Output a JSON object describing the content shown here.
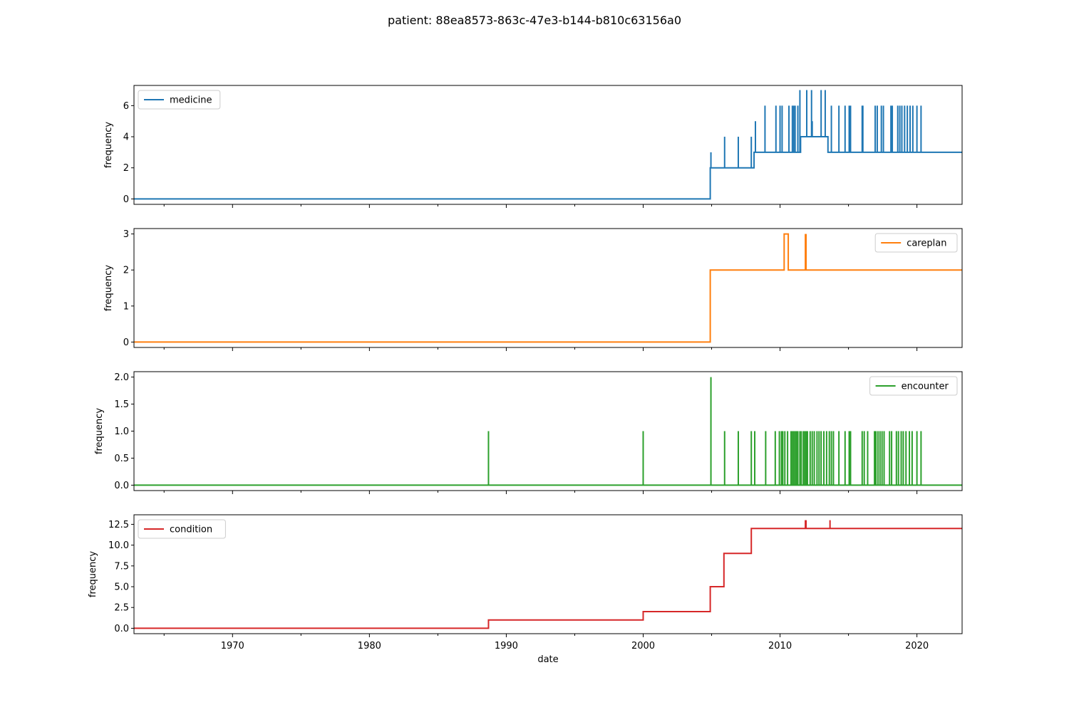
{
  "title": "patient: 88ea8573-863c-47e3-b144-b810c63156a0",
  "xlabel": "date",
  "chart_data": {
    "type": "line",
    "title": "patient: 88ea8573-863c-47e3-b144-b810c63156a0",
    "xlabel": "date",
    "xlim": [
      1962.8,
      2023.3
    ],
    "xticks": [
      1970,
      1980,
      1990,
      2000,
      2010,
      2020
    ],
    "xtick_labels": [
      "1970",
      "1980",
      "1990",
      "2000",
      "2010",
      "2020"
    ],
    "grid": false,
    "panels": [
      {
        "ylabel": "frequency",
        "ylim": [
          -0.35,
          7.3
        ],
        "yticks": [
          0,
          2,
          4,
          6
        ],
        "ytick_labels": [
          "0",
          "2",
          "4",
          "6"
        ],
        "legend_location": "upper left",
        "series": [
          {
            "name": "medicine",
            "color": "#1f77b4",
            "baseline": [
              [
                1962.8,
                0
              ],
              [
                2004.9,
                0
              ],
              [
                2004.9,
                2
              ],
              [
                2008.1,
                2
              ],
              [
                2008.1,
                3
              ],
              [
                2011.5,
                3
              ],
              [
                2011.5,
                4
              ],
              [
                2013.5,
                4
              ],
              [
                2013.5,
                3
              ],
              [
                2023.3,
                3
              ]
            ],
            "spikes": [
              [
                2004.95,
                3
              ],
              [
                2005.95,
                4
              ],
              [
                2006.95,
                4
              ],
              [
                2007.9,
                4
              ],
              [
                2008.2,
                5
              ],
              [
                2008.9,
                6
              ],
              [
                2009.7,
                6
              ],
              [
                2010.0,
                6
              ],
              [
                2010.15,
                6
              ],
              [
                2010.65,
                6
              ],
              [
                2010.9,
                6
              ],
              [
                2011.0,
                6
              ],
              [
                2011.1,
                6
              ],
              [
                2011.3,
                6
              ],
              [
                2011.45,
                7
              ],
              [
                2011.95,
                7
              ],
              [
                2012.3,
                7
              ],
              [
                2012.35,
                5
              ],
              [
                2013.0,
                7
              ],
              [
                2013.3,
                7
              ],
              [
                2013.75,
                6
              ],
              [
                2014.3,
                6
              ],
              [
                2014.75,
                6
              ],
              [
                2015.05,
                6
              ],
              [
                2015.15,
                6
              ],
              [
                2016.0,
                6
              ],
              [
                2016.05,
                6
              ],
              [
                2016.95,
                6
              ],
              [
                2017.1,
                6
              ],
              [
                2017.4,
                6
              ],
              [
                2017.55,
                6
              ],
              [
                2018.1,
                6
              ],
              [
                2018.2,
                6
              ],
              [
                2018.6,
                6
              ],
              [
                2018.75,
                6
              ],
              [
                2018.9,
                6
              ],
              [
                2019.1,
                6
              ],
              [
                2019.3,
                6
              ],
              [
                2019.5,
                6
              ],
              [
                2019.7,
                6
              ],
              [
                2020.0,
                6
              ],
              [
                2020.3,
                6
              ]
            ]
          }
        ]
      },
      {
        "ylabel": "frequency",
        "ylim": [
          -0.15,
          3.15
        ],
        "yticks": [
          0,
          1,
          2,
          3
        ],
        "ytick_labels": [
          "0",
          "1",
          "2",
          "3"
        ],
        "legend_location": "upper right",
        "series": [
          {
            "name": "careplan",
            "color": "#ff7f0e",
            "baseline": [
              [
                1962.8,
                0
              ],
              [
                2004.9,
                0
              ],
              [
                2004.9,
                2
              ],
              [
                2010.3,
                2
              ],
              [
                2010.3,
                3
              ],
              [
                2010.6,
                3
              ],
              [
                2010.6,
                2
              ],
              [
                2023.3,
                2
              ]
            ],
            "spikes": [
              [
                2011.85,
                3
              ],
              [
                2011.9,
                3
              ]
            ]
          }
        ]
      },
      {
        "ylabel": "frequency",
        "ylim": [
          -0.1,
          2.1
        ],
        "yticks": [
          0.0,
          0.5,
          1.0,
          1.5,
          2.0
        ],
        "ytick_labels": [
          "0.0",
          "0.5",
          "1.0",
          "1.5",
          "2.0"
        ],
        "legend_location": "upper right",
        "series": [
          {
            "name": "encounter",
            "color": "#2ca02c",
            "baseline": [
              [
                1962.8,
                0
              ],
              [
                2023.3,
                0
              ]
            ],
            "spikes": [
              [
                1988.7,
                1
              ],
              [
                2000.0,
                1
              ],
              [
                2004.95,
                2
              ],
              [
                2005.95,
                1
              ],
              [
                2006.95,
                1
              ],
              [
                2007.9,
                1
              ],
              [
                2008.15,
                1
              ],
              [
                2008.95,
                1
              ],
              [
                2009.65,
                1
              ],
              [
                2009.95,
                1
              ],
              [
                2010.1,
                1
              ],
              [
                2010.2,
                1
              ],
              [
                2010.35,
                1
              ],
              [
                2010.55,
                1
              ],
              [
                2010.8,
                1
              ],
              [
                2010.9,
                1
              ],
              [
                2011.0,
                1
              ],
              [
                2011.1,
                1
              ],
              [
                2011.2,
                1
              ],
              [
                2011.3,
                1
              ],
              [
                2011.45,
                1
              ],
              [
                2011.55,
                1
              ],
              [
                2011.7,
                1
              ],
              [
                2011.8,
                1
              ],
              [
                2011.9,
                1
              ],
              [
                2012.0,
                1
              ],
              [
                2012.2,
                1
              ],
              [
                2012.35,
                1
              ],
              [
                2012.5,
                1
              ],
              [
                2012.7,
                1
              ],
              [
                2012.85,
                1
              ],
              [
                2013.0,
                1
              ],
              [
                2013.2,
                1
              ],
              [
                2013.4,
                1
              ],
              [
                2013.6,
                1
              ],
              [
                2013.75,
                1
              ],
              [
                2013.9,
                1
              ],
              [
                2014.3,
                1
              ],
              [
                2014.75,
                1
              ],
              [
                2015.05,
                1
              ],
              [
                2015.15,
                1
              ],
              [
                2016.0,
                1
              ],
              [
                2016.15,
                1
              ],
              [
                2016.4,
                1
              ],
              [
                2016.9,
                1
              ],
              [
                2017.0,
                1
              ],
              [
                2017.15,
                1
              ],
              [
                2017.3,
                1
              ],
              [
                2017.45,
                1
              ],
              [
                2017.6,
                1
              ],
              [
                2018.0,
                1
              ],
              [
                2018.15,
                1
              ],
              [
                2018.5,
                1
              ],
              [
                2018.65,
                1
              ],
              [
                2018.85,
                1
              ],
              [
                2019.0,
                1
              ],
              [
                2019.2,
                1
              ],
              [
                2019.45,
                1
              ],
              [
                2019.65,
                1
              ],
              [
                2020.0,
                1
              ],
              [
                2020.3,
                1
              ]
            ]
          }
        ]
      },
      {
        "ylabel": "frequency",
        "ylim": [
          -0.65,
          13.65
        ],
        "yticks": [
          0.0,
          2.5,
          5.0,
          7.5,
          10.0,
          12.5
        ],
        "ytick_labels": [
          "0.0",
          "2.5",
          "5.0",
          "7.5",
          "10.0",
          "12.5"
        ],
        "legend_location": "upper left",
        "series": [
          {
            "name": "condition",
            "color": "#d62728",
            "baseline": [
              [
                1962.8,
                0
              ],
              [
                1988.7,
                0
              ],
              [
                1988.7,
                1
              ],
              [
                2000.0,
                1
              ],
              [
                2000.0,
                2
              ],
              [
                2004.9,
                2
              ],
              [
                2004.9,
                5
              ],
              [
                2005.9,
                5
              ],
              [
                2005.9,
                9
              ],
              [
                2007.9,
                9
              ],
              [
                2007.9,
                12
              ],
              [
                2023.3,
                12
              ]
            ],
            "spikes": [
              [
                2011.85,
                13
              ],
              [
                2011.9,
                13
              ],
              [
                2013.65,
                13
              ]
            ]
          }
        ]
      }
    ]
  }
}
